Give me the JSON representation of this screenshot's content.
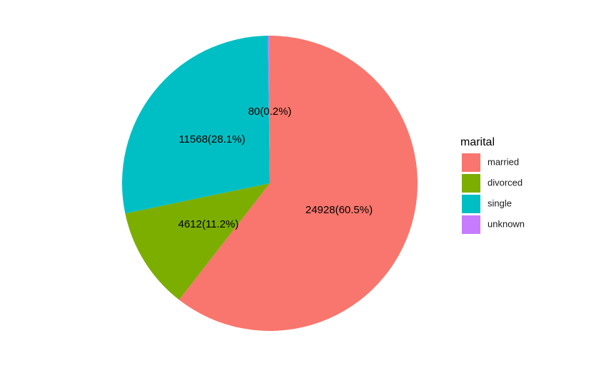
{
  "chart_data": {
    "type": "pie",
    "categories": [
      "married",
      "divorced",
      "single",
      "unknown"
    ],
    "values": [
      24928,
      4612,
      11568,
      80
    ],
    "labels": [
      "24928(60.5%)",
      "4612(11.2%)",
      "11568(28.1%)",
      "80(0.2%)"
    ],
    "colors": [
      "#F8766D",
      "#7CAE00",
      "#00BFC4",
      "#C77CFF"
    ],
    "legend": {
      "title": "marital",
      "placement": "right",
      "entries": [
        "married",
        "divorced",
        "single",
        "unknown"
      ]
    }
  }
}
